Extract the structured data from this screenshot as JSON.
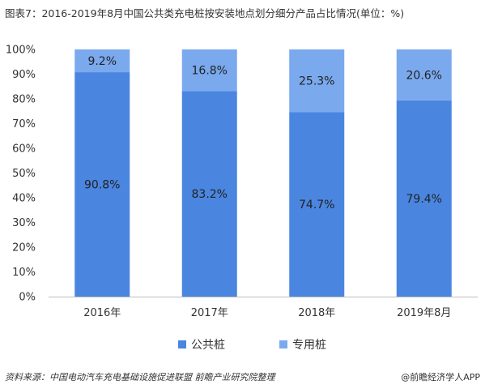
{
  "title": "图表7：2016-2019年8月中国公共类充电桩按安装地点划分细分产品占比情况(单位：%)",
  "footer": {
    "source": "资料来源：中国电动汽车充电基础设施促进联盟 前瞻产业研究院整理",
    "brand": "@前瞻经济学人APP"
  },
  "chart_data": {
    "type": "bar",
    "stacked": true,
    "categories": [
      "2016年",
      "2017年",
      "2018年",
      "2019年8月"
    ],
    "series": [
      {
        "name": "公共桩",
        "color": "#4a86e0",
        "values": [
          90.8,
          83.2,
          74.7,
          79.4
        ],
        "labels": [
          "90.8%",
          "83.2%",
          "74.7%",
          "79.4%"
        ]
      },
      {
        "name": "专用桩",
        "color": "#7aa9ee",
        "values": [
          9.2,
          16.8,
          25.3,
          20.6
        ],
        "labels": [
          "9.2%",
          "16.8%",
          "25.3%",
          "20.6%"
        ]
      }
    ],
    "yticks": [
      "0%",
      "10%",
      "20%",
      "30%",
      "40%",
      "50%",
      "60%",
      "70%",
      "80%",
      "90%",
      "100%"
    ],
    "ylim": [
      0,
      100
    ],
    "grid": false,
    "legend": "bottom"
  }
}
